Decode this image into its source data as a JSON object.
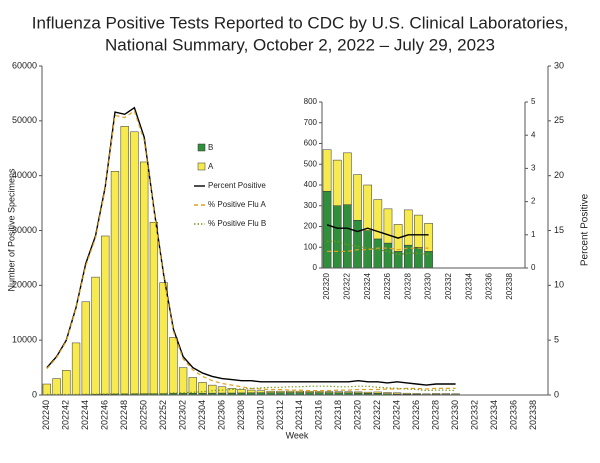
{
  "chart_data": [
    {
      "type": "bar",
      "title": [
        "Influenza Positive Tests Reported to CDC by U.S. Clinical Laboratories,",
        "National Summary, October 2, 2022 – July 29, 2023"
      ],
      "y_label": "Number of Positive Specimens",
      "y2_label": "Percent Positive",
      "x_label": "Week",
      "categories": [
        "202240",
        null,
        "202242",
        null,
        "202244",
        null,
        "202246",
        null,
        "202248",
        null,
        "202250",
        null,
        "202252",
        null,
        "202302",
        null,
        "202304",
        null,
        "202306",
        null,
        "202308",
        null,
        "202310",
        null,
        "202312",
        null,
        "202314",
        null,
        "202316",
        null,
        "202318",
        null,
        "202320",
        null,
        "202322",
        null,
        "202324",
        null,
        "202326",
        null,
        "202328",
        null,
        "202330",
        null,
        "202332",
        null,
        "202334",
        null,
        "202336",
        null,
        "202338",
        null
      ],
      "ylim": [
        0,
        60000
      ],
      "yticks": [
        0,
        10000,
        20000,
        30000,
        40000,
        50000,
        60000
      ],
      "y2lim": [
        0,
        30
      ],
      "y2ticks": [
        0,
        5,
        10,
        15,
        20,
        25,
        30
      ],
      "stacked": true,
      "legend": "center-left",
      "series": [
        {
          "name": "B",
          "kind": "bar",
          "color": "#2f8f3a",
          "values": [
            20,
            30,
            40,
            60,
            90,
            120,
            150,
            180,
            200,
            220,
            220,
            230,
            250,
            300,
            300,
            320,
            330,
            340,
            350,
            360,
            380,
            400,
            420,
            420,
            430,
            440,
            440,
            440,
            430,
            420,
            400,
            400,
            370,
            300,
            305,
            230,
            180,
            140,
            120,
            80,
            110,
            100,
            80,
            null,
            null,
            null,
            null,
            null,
            null,
            null,
            null,
            null
          ]
        },
        {
          "name": "A",
          "kind": "bar",
          "color": "#f7ea4f",
          "values": [
            1980,
            2970,
            4460,
            9440,
            16910,
            21380,
            28850,
            40620,
            48800,
            47780,
            42280,
            31270,
            20250,
            10200,
            4700,
            2880,
            1970,
            1460,
            1150,
            840,
            620,
            500,
            380,
            280,
            270,
            260,
            260,
            210,
            220,
            180,
            200,
            200,
            200,
            220,
            250,
            220,
            220,
            190,
            165,
            130,
            170,
            155,
            135,
            null,
            null,
            null,
            null,
            null,
            null,
            null,
            null,
            null
          ]
        },
        {
          "name": "Percent Positive",
          "kind": "line",
          "axis": "y2",
          "color": "#000000",
          "dash": "solid",
          "values": [
            2.5,
            3.5,
            5,
            8,
            12,
            14.5,
            19,
            25.8,
            25.6,
            26.2,
            23.5,
            17,
            11,
            6,
            3.5,
            2.5,
            2,
            1.7,
            1.5,
            1.4,
            1.3,
            1.3,
            1.2,
            1.2,
            1.2,
            1.2,
            1.2,
            1.2,
            1.2,
            1.2,
            1.2,
            1.2,
            1.3,
            1.2,
            1.2,
            1.1,
            1.2,
            1.1,
            1.0,
            0.9,
            1.0,
            1.0,
            1.0,
            null,
            null,
            null,
            null,
            null,
            null,
            null,
            null,
            null
          ]
        },
        {
          "name": "% Positive Flu A",
          "kind": "line",
          "axis": "y2",
          "color": "#e0a020",
          "dash": "dashed",
          "values": [
            2.4,
            3.4,
            4.9,
            7.9,
            11.8,
            14.3,
            18.8,
            25.5,
            25.3,
            25.9,
            23.2,
            16.8,
            10.8,
            5.8,
            3.3,
            2.3,
            1.7,
            1.3,
            1.05,
            0.9,
            0.75,
            0.6,
            0.55,
            0.5,
            0.5,
            0.45,
            0.45,
            0.4,
            0.4,
            0.4,
            0.45,
            0.45,
            0.5,
            0.5,
            0.5,
            0.55,
            0.55,
            0.6,
            0.6,
            0.55,
            0.6,
            0.6,
            0.6,
            null,
            null,
            null,
            null,
            null,
            null,
            null,
            null,
            null
          ]
        },
        {
          "name": "% Positive Flu B",
          "kind": "line",
          "axis": "y2",
          "color": "#7a9a20",
          "dash": "dotted",
          "values": [
            0.05,
            0.05,
            0.05,
            0.05,
            0.07,
            0.08,
            0.1,
            0.12,
            0.11,
            0.11,
            0.12,
            0.12,
            0.13,
            0.2,
            0.2,
            0.25,
            0.3,
            0.4,
            0.45,
            0.5,
            0.55,
            0.6,
            0.65,
            0.7,
            0.7,
            0.75,
            0.75,
            0.8,
            0.8,
            0.8,
            0.75,
            0.75,
            0.8,
            0.8,
            0.7,
            0.65,
            0.6,
            0.55,
            0.5,
            0.4,
            0.45,
            0.45,
            0.4,
            null,
            null,
            null,
            null,
            null,
            null,
            null,
            null,
            null
          ]
        }
      ]
    },
    {
      "type": "bar",
      "categories": [
        "202320",
        null,
        "202322",
        null,
        "202324",
        null,
        "202326",
        null,
        "202328",
        null,
        "202330",
        null,
        "202332",
        null,
        "202334",
        null,
        "202336",
        null,
        "202338",
        null
      ],
      "ylim": [
        0,
        800
      ],
      "yticks": [
        0,
        100,
        200,
        300,
        400,
        500,
        600,
        700,
        800
      ],
      "y2lim": [
        0,
        5
      ],
      "y2ticks": [
        0,
        1,
        2,
        3,
        4,
        5
      ],
      "stacked": true,
      "series": [
        {
          "kind": "bar",
          "color": "#2f8f3a",
          "values": [
            370,
            300,
            305,
            230,
            180,
            140,
            120,
            80,
            110,
            100,
            80,
            null,
            null,
            null,
            null,
            null,
            null,
            null,
            null,
            null
          ]
        },
        {
          "kind": "bar",
          "color": "#f7ea4f",
          "values": [
            200,
            220,
            250,
            220,
            220,
            190,
            165,
            130,
            170,
            155,
            135,
            null,
            null,
            null,
            null,
            null,
            null,
            null,
            null,
            null
          ]
        },
        {
          "kind": "line",
          "axis": "y2",
          "color": "#000000",
          "dash": "solid",
          "values": [
            1.3,
            1.2,
            1.2,
            1.1,
            1.2,
            1.1,
            1.0,
            0.9,
            1.0,
            1.0,
            1.0,
            null,
            null,
            null,
            null,
            null,
            null,
            null,
            null,
            null
          ]
        },
        {
          "kind": "line",
          "axis": "y2",
          "color": "#e0a020",
          "dash": "dashed",
          "values": [
            0.5,
            0.5,
            0.5,
            0.55,
            0.55,
            0.6,
            0.6,
            0.55,
            0.6,
            0.6,
            0.6,
            null,
            null,
            null,
            null,
            null,
            null,
            null,
            null,
            null
          ]
        },
        {
          "kind": "line",
          "axis": "y2",
          "color": "#7a9a20",
          "dash": "dotted",
          "values": [
            0.8,
            0.8,
            0.7,
            0.65,
            0.6,
            0.55,
            0.5,
            0.4,
            0.45,
            0.45,
            0.4,
            null,
            null,
            null,
            null,
            null,
            null,
            null,
            null,
            null
          ]
        }
      ]
    }
  ]
}
